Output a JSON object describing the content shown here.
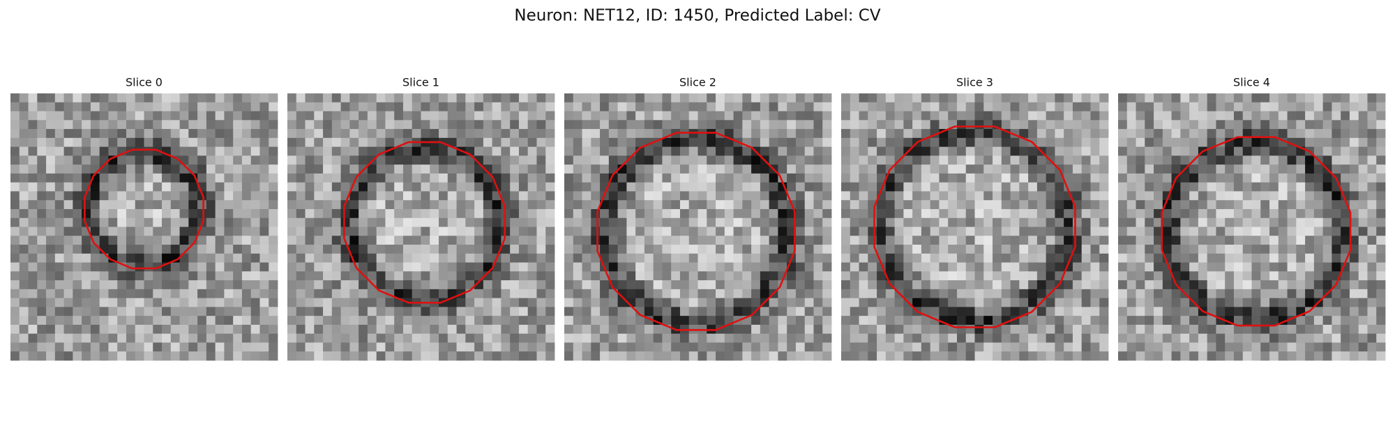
{
  "title": "Neuron: NET12, ID: 1450, Predicted Label: CV",
  "panels": [
    {
      "title": "Slice 0"
    },
    {
      "title": "Slice 1"
    },
    {
      "title": "Slice 2"
    },
    {
      "title": "Slice 3"
    },
    {
      "title": "Slice 4"
    }
  ]
}
